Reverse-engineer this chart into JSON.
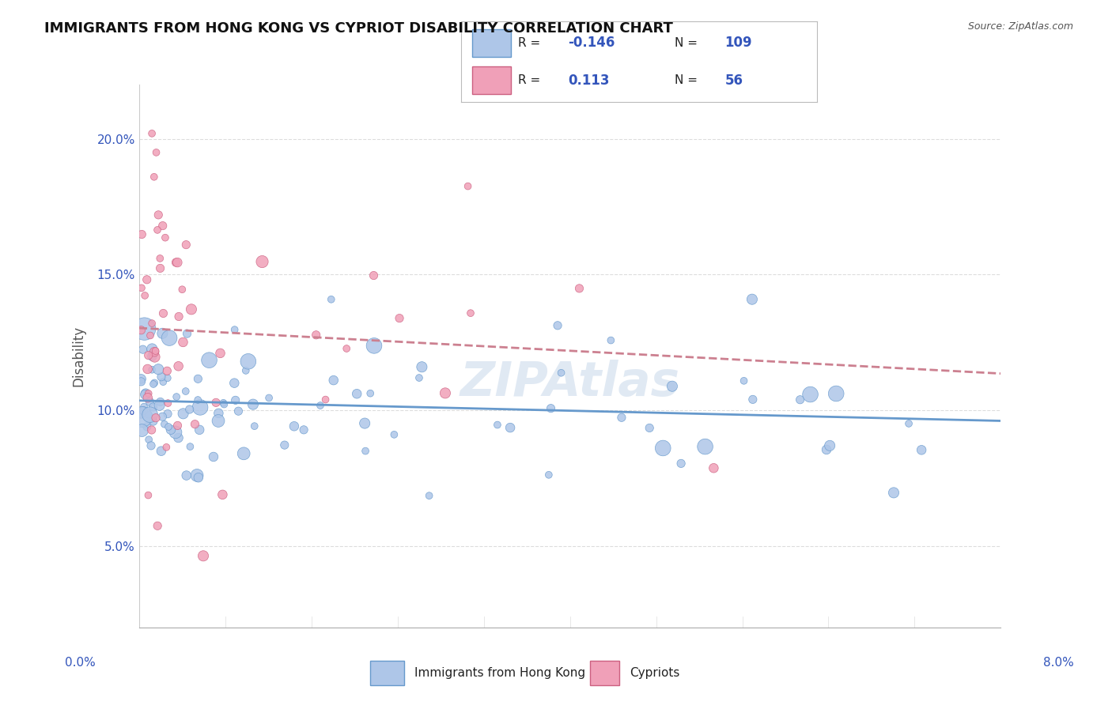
{
  "title": "IMMIGRANTS FROM HONG KONG VS CYPRIOT DISABILITY CORRELATION CHART",
  "source": "Source: ZipAtlas.com",
  "ylabel": "Disability",
  "xlim": [
    0.0,
    8.0
  ],
  "ylim": [
    2.0,
    22.0
  ],
  "yticks": [
    5.0,
    10.0,
    15.0,
    20.0
  ],
  "ytick_labels": [
    "5.0%",
    "10.0%",
    "15.0%",
    "20.0%"
  ],
  "blue_fill": "#aec6e8",
  "blue_edge": "#6699cc",
  "pink_fill": "#f0a0b8",
  "pink_edge": "#cc6080",
  "blue_line_color": "#6699cc",
  "pink_line_color": "#cc8090",
  "legend_blue_R": "-0.146",
  "legend_blue_N": "109",
  "legend_pink_R": "0.113",
  "legend_pink_N": "56",
  "watermark": "ZIPAtlas",
  "label_blue": "Immigrants from Hong Kong",
  "label_pink": "Cypriots"
}
